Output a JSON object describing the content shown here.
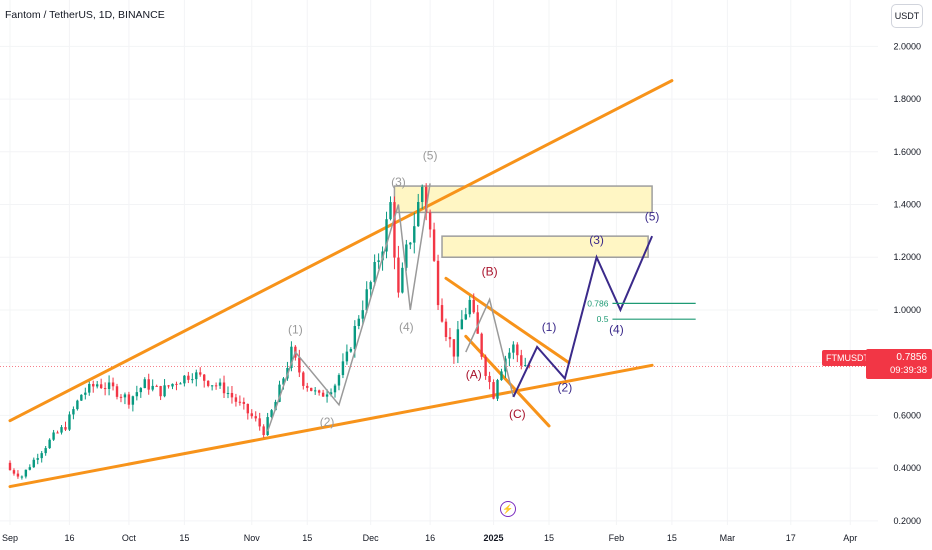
{
  "header": {
    "title": "Fantom / TetherUS, 1D, BINANCE",
    "currency": "USDT"
  },
  "price_tags": {
    "symbol": "FTMUSDT",
    "last": "0.7856",
    "countdown": "09:39:38"
  },
  "colors": {
    "up": "#089981",
    "down": "#f23645",
    "trendline": "#f7931a",
    "wave_gray": "#9a9a9a",
    "wave_purple": "#3b2a8a",
    "wave_red": "#a8122b",
    "zone_fill": "#fff6c4",
    "fib": "#1e9a74",
    "bolt": "#7b2cbf"
  },
  "icons": {
    "bolt": "lightning-icon"
  },
  "chart_data": {
    "type": "candlestick",
    "x_ticks": [
      "Sep",
      "16",
      "Oct",
      "15",
      "Nov",
      "15",
      "Dec",
      "16",
      "2025",
      "15",
      "Feb",
      "15",
      "Mar",
      "17",
      "Apr"
    ],
    "y_ticks": [
      "2.0000",
      "1.8000",
      "1.6000",
      "1.4000",
      "1.2000",
      "1.0000",
      "0.8000",
      "0.6000",
      "0.4000",
      "0.2000"
    ],
    "ylim": [
      0.15,
      2.1
    ],
    "x_range": [
      "2024-09-01",
      "2025-04-08"
    ],
    "last_price": 0.7856,
    "candles_approx": [
      [
        "2024-09-01",
        0.42,
        0.4
      ],
      [
        "2024-09-05",
        0.4,
        0.37
      ],
      [
        "2024-09-09",
        0.37,
        0.45
      ],
      [
        "2024-09-13",
        0.45,
        0.52
      ],
      [
        "2024-09-16",
        0.52,
        0.56
      ],
      [
        "2024-09-20",
        0.56,
        0.68
      ],
      [
        "2024-09-24",
        0.68,
        0.72
      ],
      [
        "2024-09-28",
        0.72,
        0.7
      ],
      [
        "2024-10-02",
        0.7,
        0.66
      ],
      [
        "2024-10-06",
        0.66,
        0.72
      ],
      [
        "2024-10-10",
        0.72,
        0.69
      ],
      [
        "2024-10-14",
        0.69,
        0.73
      ],
      [
        "2024-10-18",
        0.73,
        0.76
      ],
      [
        "2024-10-22",
        0.76,
        0.73
      ],
      [
        "2024-10-26",
        0.73,
        0.7
      ],
      [
        "2024-10-30",
        0.7,
        0.64
      ],
      [
        "2024-11-03",
        0.64,
        0.58
      ],
      [
        "2024-11-05",
        0.58,
        0.54
      ],
      [
        "2024-11-08",
        0.54,
        0.65
      ],
      [
        "2024-11-12",
        0.65,
        0.84
      ],
      [
        "2024-11-15",
        0.84,
        0.73
      ],
      [
        "2024-11-19",
        0.73,
        0.67
      ],
      [
        "2024-11-23",
        0.67,
        0.72
      ],
      [
        "2024-11-26",
        0.72,
        0.82
      ],
      [
        "2024-11-29",
        0.82,
        0.98
      ],
      [
        "2024-12-02",
        0.98,
        1.1
      ],
      [
        "2024-12-05",
        1.1,
        1.25
      ],
      [
        "2024-12-07",
        1.25,
        1.4
      ],
      [
        "2024-12-09",
        1.4,
        1.05
      ],
      [
        "2024-12-11",
        1.05,
        1.22
      ],
      [
        "2024-12-13",
        1.22,
        1.33
      ],
      [
        "2024-12-15",
        1.33,
        1.47
      ],
      [
        "2024-12-17",
        1.47,
        1.3
      ],
      [
        "2024-12-19",
        1.3,
        1.05
      ],
      [
        "2024-12-21",
        1.05,
        0.92
      ],
      [
        "2024-12-23",
        0.92,
        0.84
      ],
      [
        "2024-12-25",
        0.84,
        0.96
      ],
      [
        "2024-12-27",
        0.96,
        1.03
      ],
      [
        "2024-12-29",
        1.03,
        0.9
      ],
      [
        "2024-12-31",
        0.9,
        0.77
      ],
      [
        "2025-01-02",
        0.77,
        0.68
      ],
      [
        "2025-01-03",
        0.68,
        0.75
      ],
      [
        "2025-01-05",
        0.75,
        0.82
      ],
      [
        "2025-01-07",
        0.82,
        0.86
      ],
      [
        "2025-01-09",
        0.86,
        0.8
      ],
      [
        "2025-01-11",
        0.8,
        0.7856
      ]
    ],
    "trendlines": [
      {
        "name": "upper",
        "from": [
          "2024-09-01",
          0.58
        ],
        "to": [
          "2025-02-15",
          1.87
        ]
      },
      {
        "name": "lower",
        "from": [
          "2024-09-01",
          0.33
        ],
        "to": [
          "2025-02-10",
          0.79
        ]
      },
      {
        "name": "channel-top",
        "from": [
          "2024-12-20",
          1.12
        ],
        "to": [
          "2025-01-20",
          0.8
        ]
      },
      {
        "name": "channel-bottom",
        "from": [
          "2024-12-25",
          0.9
        ],
        "to": [
          "2025-01-15",
          0.56
        ]
      }
    ],
    "zones": [
      {
        "from": "2024-12-07",
        "to": "2025-02-10",
        "top": 1.47,
        "bottom": 1.37
      },
      {
        "from": "2024-12-19",
        "to": "2025-02-09",
        "top": 1.28,
        "bottom": 1.2
      }
    ],
    "fib_levels": [
      {
        "label": "0.786",
        "value": 1.025
      },
      {
        "label": "0.5",
        "value": 0.965
      }
    ],
    "wave_labels": [
      {
        "text": "(3)",
        "x": "2024-12-08",
        "y": 1.47,
        "color": "gray"
      },
      {
        "text": "(5)",
        "x": "2024-12-16",
        "y": 1.57,
        "color": "gray"
      },
      {
        "text": "(1)",
        "x": "2024-11-12",
        "y": 0.91,
        "color": "gray"
      },
      {
        "text": "(2)",
        "x": "2024-11-20",
        "y": 0.56,
        "color": "gray"
      },
      {
        "text": "(4)",
        "x": "2024-12-10",
        "y": 0.92,
        "color": "gray"
      },
      {
        "text": "(B)",
        "x": "2024-12-31",
        "y": 1.13,
        "color": "red"
      },
      {
        "text": "(A)",
        "x": "2024-12-27",
        "y": 0.74,
        "color": "red"
      },
      {
        "text": "(C)",
        "x": "2025-01-07",
        "y": 0.59,
        "color": "red"
      },
      {
        "text": "(1)",
        "x": "2025-01-15",
        "y": 0.92,
        "color": "purple"
      },
      {
        "text": "(2)",
        "x": "2025-01-19",
        "y": 0.69,
        "color": "purple"
      },
      {
        "text": "(3)",
        "x": "2025-01-27",
        "y": 1.25,
        "color": "purple"
      },
      {
        "text": "(4)",
        "x": "2025-02-01",
        "y": 0.91,
        "color": "purple"
      },
      {
        "text": "(5)",
        "x": "2025-02-10",
        "y": 1.34,
        "color": "purple"
      }
    ],
    "wave_paths": [
      {
        "color": "gray",
        "points": [
          [
            "2024-11-05",
            0.54
          ],
          [
            "2024-11-12",
            0.84
          ],
          [
            "2024-11-23",
            0.64
          ],
          [
            "2024-12-08",
            1.4
          ],
          [
            "2024-12-11",
            1.0
          ],
          [
            "2024-12-16",
            1.48
          ]
        ]
      },
      {
        "color": "gray",
        "points": [
          [
            "2024-12-25",
            0.84
          ],
          [
            "2024-12-31",
            1.04
          ],
          [
            "2025-01-06",
            0.67
          ]
        ]
      },
      {
        "color": "purple",
        "points": [
          [
            "2025-01-06",
            0.67
          ],
          [
            "2025-01-12",
            0.86
          ],
          [
            "2025-01-19",
            0.74
          ],
          [
            "2025-01-27",
            1.2
          ],
          [
            "2025-02-02",
            1.0
          ],
          [
            "2025-02-10",
            1.28
          ]
        ]
      }
    ]
  }
}
